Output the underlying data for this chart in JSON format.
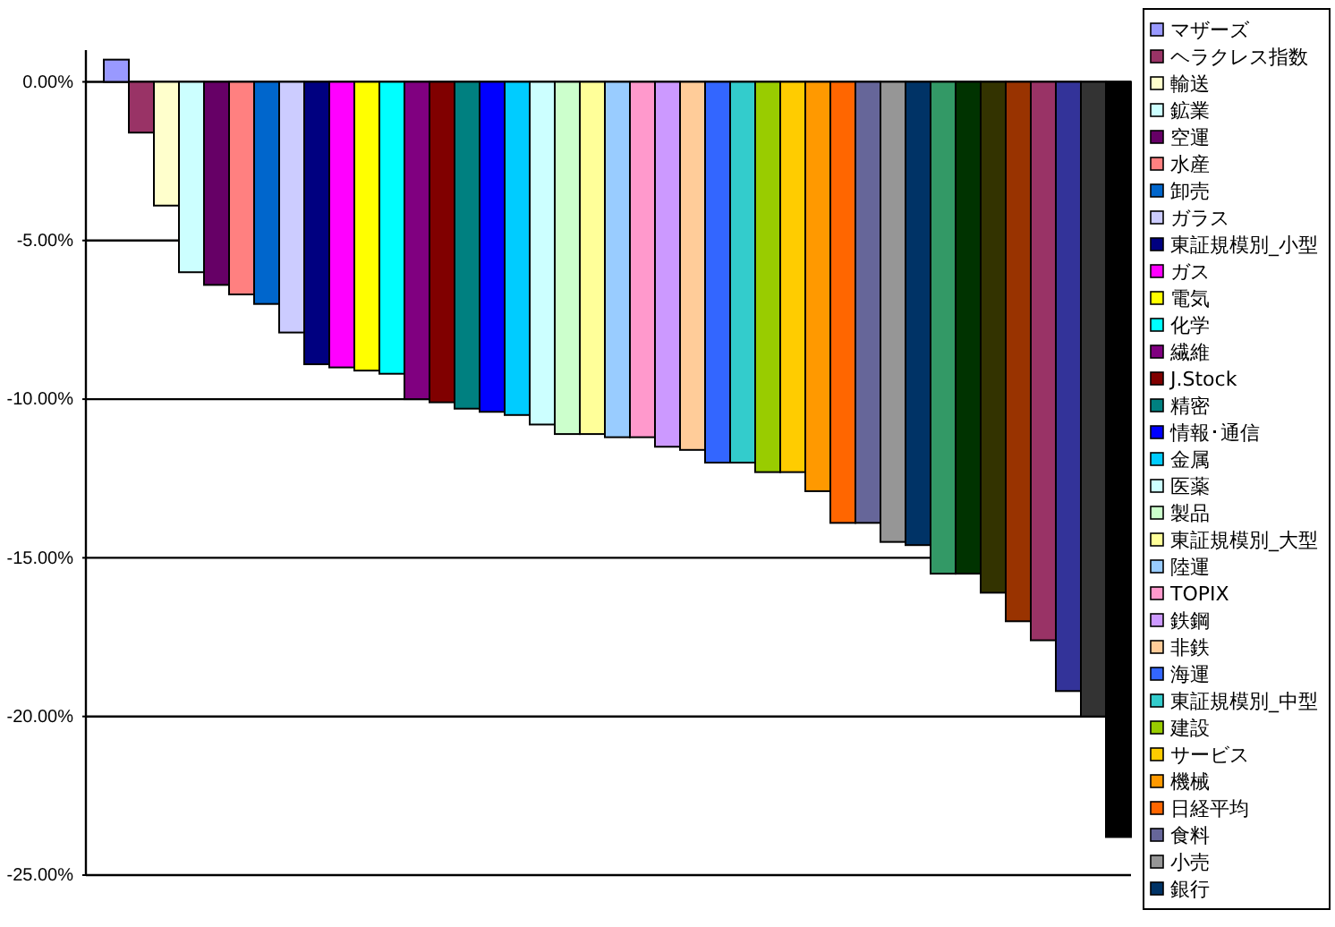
{
  "chart_data": {
    "type": "bar",
    "categories": [
      null
    ],
    "series": [
      {
        "name": "マザーズ",
        "color": "#9999ff",
        "values": [
          0.7
        ]
      },
      {
        "name": "ヘラクレス指数",
        "color": "#993366",
        "values": [
          -1.6
        ]
      },
      {
        "name": "輸送",
        "color": "#ffffcc",
        "values": [
          -3.9
        ]
      },
      {
        "name": "鉱業",
        "color": "#ccffff",
        "values": [
          -6.0
        ]
      },
      {
        "name": "空運",
        "color": "#660066",
        "values": [
          -6.4
        ]
      },
      {
        "name": "水産",
        "color": "#ff8080",
        "values": [
          -6.7
        ]
      },
      {
        "name": "卸売",
        "color": "#0066cc",
        "values": [
          -7.0
        ]
      },
      {
        "name": "ガラス",
        "color": "#ccccff",
        "values": [
          -7.9
        ]
      },
      {
        "name": "東証規模別_小型",
        "color": "#000080",
        "values": [
          -8.9
        ]
      },
      {
        "name": "ガス",
        "color": "#ff00ff",
        "values": [
          -9.0
        ]
      },
      {
        "name": "電気",
        "color": "#ffff00",
        "values": [
          -9.1
        ]
      },
      {
        "name": "化学",
        "color": "#00ffff",
        "values": [
          -9.2
        ]
      },
      {
        "name": "繊維",
        "color": "#800080",
        "values": [
          -10.0
        ]
      },
      {
        "name": "J.Stock",
        "color": "#800000",
        "values": [
          -10.1
        ]
      },
      {
        "name": "精密",
        "color": "#008080",
        "values": [
          -10.3
        ]
      },
      {
        "name": "情報･通信",
        "color": "#0000ff",
        "values": [
          -10.4
        ]
      },
      {
        "name": "金属",
        "color": "#00ccff",
        "values": [
          -10.5
        ]
      },
      {
        "name": "医薬",
        "color": "#ccffff",
        "values": [
          -10.8
        ]
      },
      {
        "name": "製品",
        "color": "#ccffcc",
        "values": [
          -11.1
        ]
      },
      {
        "name": "東証規模別_大型",
        "color": "#ffff99",
        "values": [
          -11.1
        ]
      },
      {
        "name": "陸運",
        "color": "#99ccff",
        "values": [
          -11.2
        ]
      },
      {
        "name": "TOPIX",
        "color": "#ff99cc",
        "values": [
          -11.2
        ]
      },
      {
        "name": "鉄鋼",
        "color": "#cc99ff",
        "values": [
          -11.5
        ]
      },
      {
        "name": "非鉄",
        "color": "#ffcc99",
        "values": [
          -11.6
        ]
      },
      {
        "name": "海運",
        "color": "#3366ff",
        "values": [
          -12.0
        ]
      },
      {
        "name": "東証規模別_中型",
        "color": "#33cccc",
        "values": [
          -12.0
        ]
      },
      {
        "name": "建設",
        "color": "#99cc00",
        "values": [
          -12.3
        ]
      },
      {
        "name": "サービス",
        "color": "#ffcc00",
        "values": [
          -12.3
        ]
      },
      {
        "name": "機械",
        "color": "#ff9900",
        "values": [
          -12.9
        ]
      },
      {
        "name": "日経平均",
        "color": "#ff6600",
        "values": [
          -13.9
        ]
      },
      {
        "name": "食料",
        "color": "#666699",
        "values": [
          -13.9
        ]
      },
      {
        "name": "小売",
        "color": "#969696",
        "values": [
          -14.5
        ]
      },
      {
        "name": "銀行",
        "color": "#003366",
        "values": [
          -14.6
        ]
      },
      {
        "color": "#339966",
        "values": [
          -15.5
        ]
      },
      {
        "color": "#003300",
        "values": [
          -15.5
        ]
      },
      {
        "color": "#333300",
        "values": [
          -16.1
        ]
      },
      {
        "color": "#993300",
        "values": [
          -17.0
        ]
      },
      {
        "color": "#993366",
        "values": [
          -17.6
        ]
      },
      {
        "color": "#333399",
        "values": [
          -19.2
        ]
      },
      {
        "color": "#333333",
        "values": [
          -20.0
        ]
      },
      {
        "color": "#000000",
        "values": [
          -23.8
        ]
      }
    ],
    "ylim": [
      -25,
      1
    ],
    "yticks": [
      {
        "value": 0,
        "label": "0.00%"
      },
      {
        "value": -5,
        "label": "-5.00%"
      },
      {
        "value": -10,
        "label": "-10.00%"
      },
      {
        "value": -15,
        "label": "-15.00%"
      },
      {
        "value": -20,
        "label": "-20.00%"
      },
      {
        "value": -25,
        "label": "-25.00%"
      }
    ],
    "grid": "y",
    "legend": "right",
    "tick_labels": "y"
  }
}
